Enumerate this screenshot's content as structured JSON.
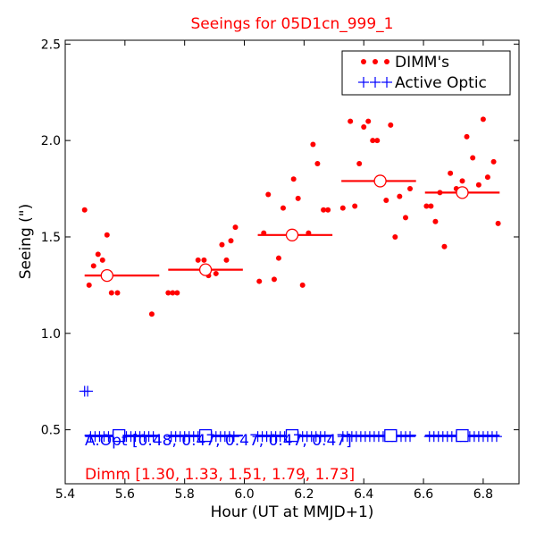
{
  "chart_data": {
    "type": "scatter",
    "title": "Seeings for 05D1cn_999_1",
    "xlabel": "Hour (UT at MMJD+1)",
    "ylabel": "Seeing (\")",
    "xlim": [
      5.4,
      6.92
    ],
    "ylim": [
      0.22,
      2.52
    ],
    "x_ticks": [
      "5.4",
      "5.6",
      "5.8",
      "6.0",
      "6.2",
      "6.4",
      "6.6",
      "6.8"
    ],
    "y_ticks": [
      "0.5",
      "1.0",
      "1.5",
      "2.0",
      "2.5"
    ],
    "legend": {
      "position": "top-right",
      "entries": [
        {
          "label": "DIMM's",
          "marker": "dots",
          "color": "#ff0000"
        },
        {
          "label": "Active Optic",
          "marker": "plus",
          "color": "#0000ff"
        }
      ]
    },
    "dimm_points": [
      [
        5.465,
        1.64
      ],
      [
        5.48,
        1.25
      ],
      [
        5.495,
        1.35
      ],
      [
        5.51,
        1.41
      ],
      [
        5.525,
        1.38
      ],
      [
        5.54,
        1.51
      ],
      [
        5.555,
        1.21
      ],
      [
        5.575,
        1.21
      ],
      [
        5.69,
        1.1
      ],
      [
        5.745,
        1.21
      ],
      [
        5.76,
        1.21
      ],
      [
        5.775,
        1.21
      ],
      [
        5.845,
        1.38
      ],
      [
        5.865,
        1.38
      ],
      [
        5.88,
        1.3
      ],
      [
        5.905,
        1.31
      ],
      [
        5.925,
        1.46
      ],
      [
        5.94,
        1.38
      ],
      [
        5.955,
        1.48
      ],
      [
        5.97,
        1.55
      ],
      [
        6.05,
        1.27
      ],
      [
        6.065,
        1.52
      ],
      [
        6.08,
        1.72
      ],
      [
        6.1,
        1.28
      ],
      [
        6.115,
        1.39
      ],
      [
        6.13,
        1.65
      ],
      [
        6.165,
        1.8
      ],
      [
        6.18,
        1.7
      ],
      [
        6.195,
        1.25
      ],
      [
        6.215,
        1.52
      ],
      [
        6.23,
        1.98
      ],
      [
        6.245,
        1.88
      ],
      [
        6.265,
        1.64
      ],
      [
        6.28,
        1.64
      ],
      [
        6.33,
        1.65
      ],
      [
        6.355,
        2.1
      ],
      [
        6.37,
        1.66
      ],
      [
        6.385,
        1.88
      ],
      [
        6.4,
        2.07
      ],
      [
        6.415,
        2.1
      ],
      [
        6.43,
        2.0
      ],
      [
        6.445,
        2.0
      ],
      [
        6.475,
        1.69
      ],
      [
        6.49,
        2.08
      ],
      [
        6.505,
        1.5
      ],
      [
        6.52,
        1.71
      ],
      [
        6.54,
        1.6
      ],
      [
        6.555,
        1.75
      ],
      [
        6.61,
        1.66
      ],
      [
        6.625,
        1.66
      ],
      [
        6.64,
        1.58
      ],
      [
        6.655,
        1.73
      ],
      [
        6.67,
        1.45
      ],
      [
        6.69,
        1.83
      ],
      [
        6.71,
        1.75
      ],
      [
        6.73,
        1.79
      ],
      [
        6.745,
        2.02
      ],
      [
        6.765,
        1.91
      ],
      [
        6.785,
        1.77
      ],
      [
        6.8,
        2.11
      ],
      [
        6.815,
        1.81
      ],
      [
        6.835,
        1.89
      ],
      [
        6.85,
        1.57
      ]
    ],
    "dimm_bins": [
      {
        "x_start": 5.465,
        "x_end": 5.715,
        "mean": 1.3,
        "x_mean": 5.54
      },
      {
        "x_start": 5.745,
        "x_end": 5.995,
        "mean": 1.33,
        "x_mean": 5.87
      },
      {
        "x_start": 6.045,
        "x_end": 6.295,
        "mean": 1.51,
        "x_mean": 6.16
      },
      {
        "x_start": 6.325,
        "x_end": 6.575,
        "mean": 1.79,
        "x_mean": 6.455
      },
      {
        "x_start": 6.605,
        "x_end": 6.855,
        "mean": 1.73,
        "x_mean": 6.73
      }
    ],
    "ao_outliers": [
      [
        5.465,
        0.7
      ],
      [
        5.475,
        0.7
      ]
    ],
    "ao_points_x": [
      5.485,
      5.5,
      5.515,
      5.53,
      5.545,
      5.56,
      5.575,
      5.59,
      5.605,
      5.62,
      5.635,
      5.65,
      5.665,
      5.68,
      5.695,
      5.755,
      5.77,
      5.785,
      5.8,
      5.815,
      5.83,
      5.845,
      5.86,
      5.875,
      5.89,
      5.905,
      5.92,
      5.935,
      5.95,
      5.965,
      6.045,
      6.06,
      6.075,
      6.09,
      6.105,
      6.12,
      6.135,
      6.15,
      6.165,
      6.18,
      6.195,
      6.21,
      6.225,
      6.24,
      6.255,
      6.27,
      6.33,
      6.345,
      6.36,
      6.375,
      6.39,
      6.405,
      6.42,
      6.435,
      6.45,
      6.465,
      6.48,
      6.495,
      6.51,
      6.525,
      6.54,
      6.555,
      6.62,
      6.635,
      6.65,
      6.665,
      6.68,
      6.695,
      6.71,
      6.725,
      6.74,
      6.755,
      6.77,
      6.785,
      6.8,
      6.815,
      6.83,
      6.845
    ],
    "ao_points_y": 0.465,
    "ao_bins": [
      {
        "x_start": 5.465,
        "x_end": 5.715,
        "mean": 0.47,
        "x_mean": 5.58
      },
      {
        "x_start": 5.745,
        "x_end": 5.995,
        "mean": 0.47,
        "x_mean": 5.87
      },
      {
        "x_start": 6.045,
        "x_end": 6.295,
        "mean": 0.47,
        "x_mean": 6.16
      },
      {
        "x_start": 6.325,
        "x_end": 6.575,
        "mean": 0.47,
        "x_mean": 6.49
      },
      {
        "x_start": 6.605,
        "x_end": 6.855,
        "mean": 0.47,
        "x_mean": 6.73
      }
    ],
    "annotations": {
      "aopt": "A.Opt [0.48, 0.47, 0.47, 0.47, 0.47]",
      "dimm": "Dimm [1.30, 1.33, 1.51, 1.79, 1.73]"
    },
    "colors": {
      "dimm": "#ff0000",
      "ao": "#0000ff"
    },
    "grid": false
  }
}
